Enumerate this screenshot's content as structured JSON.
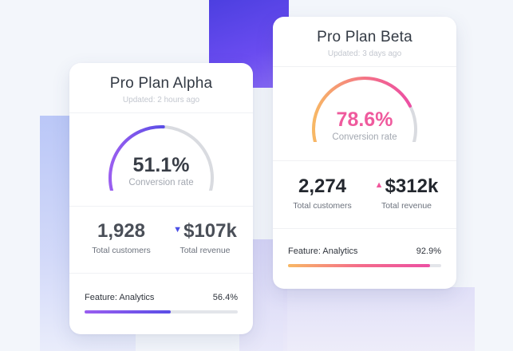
{
  "colors": {
    "alpha_accent": "#7b5cf0",
    "alpha_trend_down": "#4b4fe6",
    "beta_accent": "#f0559b",
    "beta_gradient_start": "#f8b864",
    "beta_trend_up": "#f0559b",
    "track": "#e3e5ea"
  },
  "alpha": {
    "title": "Pro Plan Alpha",
    "updated": "Updated: 2 hours ago",
    "gauge": {
      "value_text": "51.1%",
      "value": 51.1,
      "label": "Conversion rate"
    },
    "customers": {
      "value": "1,928",
      "label": "Total customers"
    },
    "revenue": {
      "value": "$107k",
      "label": "Total revenue",
      "trend": "down",
      "trend_icon": "triangle-down-icon"
    },
    "feature": {
      "label": "Feature: Analytics",
      "value_text": "56.4%",
      "value": 56.4
    }
  },
  "beta": {
    "title": "Pro Plan Beta",
    "updated": "Updated: 3 days ago",
    "gauge": {
      "value_text": "78.6%",
      "value": 78.6,
      "label": "Conversion rate"
    },
    "customers": {
      "value": "2,274",
      "label": "Total customers"
    },
    "revenue": {
      "value": "$312k",
      "label": "Total revenue",
      "trend": "up",
      "trend_icon": "triangle-up-icon"
    },
    "feature": {
      "label": "Feature: Analytics",
      "value_text": "92.9%",
      "value": 92.9
    }
  }
}
